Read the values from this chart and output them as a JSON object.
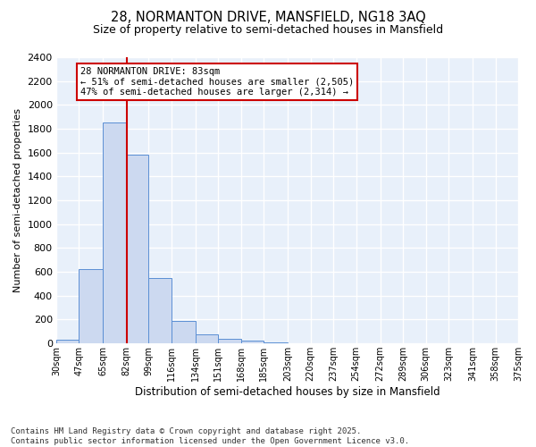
{
  "title": "28, NORMANTON DRIVE, MANSFIELD, NG18 3AQ",
  "subtitle": "Size of property relative to semi-detached houses in Mansfield",
  "xlabel": "Distribution of semi-detached houses by size in Mansfield",
  "ylabel": "Number of semi-detached properties",
  "bin_edges": [
    30,
    47,
    65,
    82,
    99,
    116,
    134,
    151,
    168,
    185,
    203,
    220,
    237,
    254,
    272,
    289,
    306,
    323,
    341,
    358,
    375
  ],
  "bin_counts": [
    30,
    625,
    1850,
    1580,
    545,
    185,
    75,
    40,
    20,
    10,
    0,
    0,
    0,
    0,
    0,
    0,
    0,
    0,
    0,
    0
  ],
  "property_size": 83,
  "bar_color": "#ccd9f0",
  "bar_edge_color": "#5b8fd4",
  "red_line_color": "#cc0000",
  "annotation_box_color": "#cc0000",
  "annotation_text": "28 NORMANTON DRIVE: 83sqm\n← 51% of semi-detached houses are smaller (2,505)\n47% of semi-detached houses are larger (2,314) →",
  "footnote_line1": "Contains HM Land Registry data © Crown copyright and database right 2025.",
  "footnote_line2": "Contains public sector information licensed under the Open Government Licence v3.0.",
  "ylim": [
    0,
    2400
  ],
  "background_color": "#e8f0fa",
  "grid_color": "#ffffff",
  "tick_labels": [
    "30sqm",
    "47sqm",
    "65sqm",
    "82sqm",
    "99sqm",
    "116sqm",
    "134sqm",
    "151sqm",
    "168sqm",
    "185sqm",
    "203sqm",
    "220sqm",
    "237sqm",
    "254sqm",
    "272sqm",
    "289sqm",
    "306sqm",
    "323sqm",
    "341sqm",
    "358sqm",
    "375sqm"
  ]
}
